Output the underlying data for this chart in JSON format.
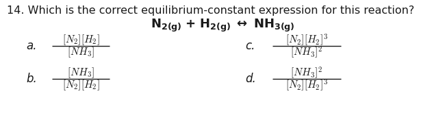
{
  "background": "#ffffff",
  "question": "14. Which is the correct equilibrium-constant expression for this reaction?",
  "q_fontsize": 11.5,
  "reaction_fontsize": 13.0,
  "opt_fontsize": 11.0,
  "label_fontsize": 12.0,
  "text_color": "#1a1a1a",
  "options": {
    "a": {
      "label": "a.",
      "num": "$[N_2][H_2]$",
      "den": "$[NH_3]$"
    },
    "b": {
      "label": "b.",
      "num": "$[NH_3]$",
      "den": "$[N_2][H_2]$"
    },
    "c": {
      "label": "c.",
      "num": "$[N_2][H_2]^3$",
      "den": "$[NH_3]^2$"
    },
    "d": {
      "label": "d.",
      "num": "$[NH_3]^2$",
      "den": "$[N_2][H_2]^3$"
    }
  },
  "reaction": "$\\mathbf{N_{2(g)}}$ $\\mathbf{+}$ $\\mathbf{H_{2(g)}}$ $\\mathbf{\\leftrightarrow}$ $\\mathbf{NH_{3(g)}}$",
  "fig_width": 6.5,
  "fig_height": 1.94,
  "dpi": 100
}
